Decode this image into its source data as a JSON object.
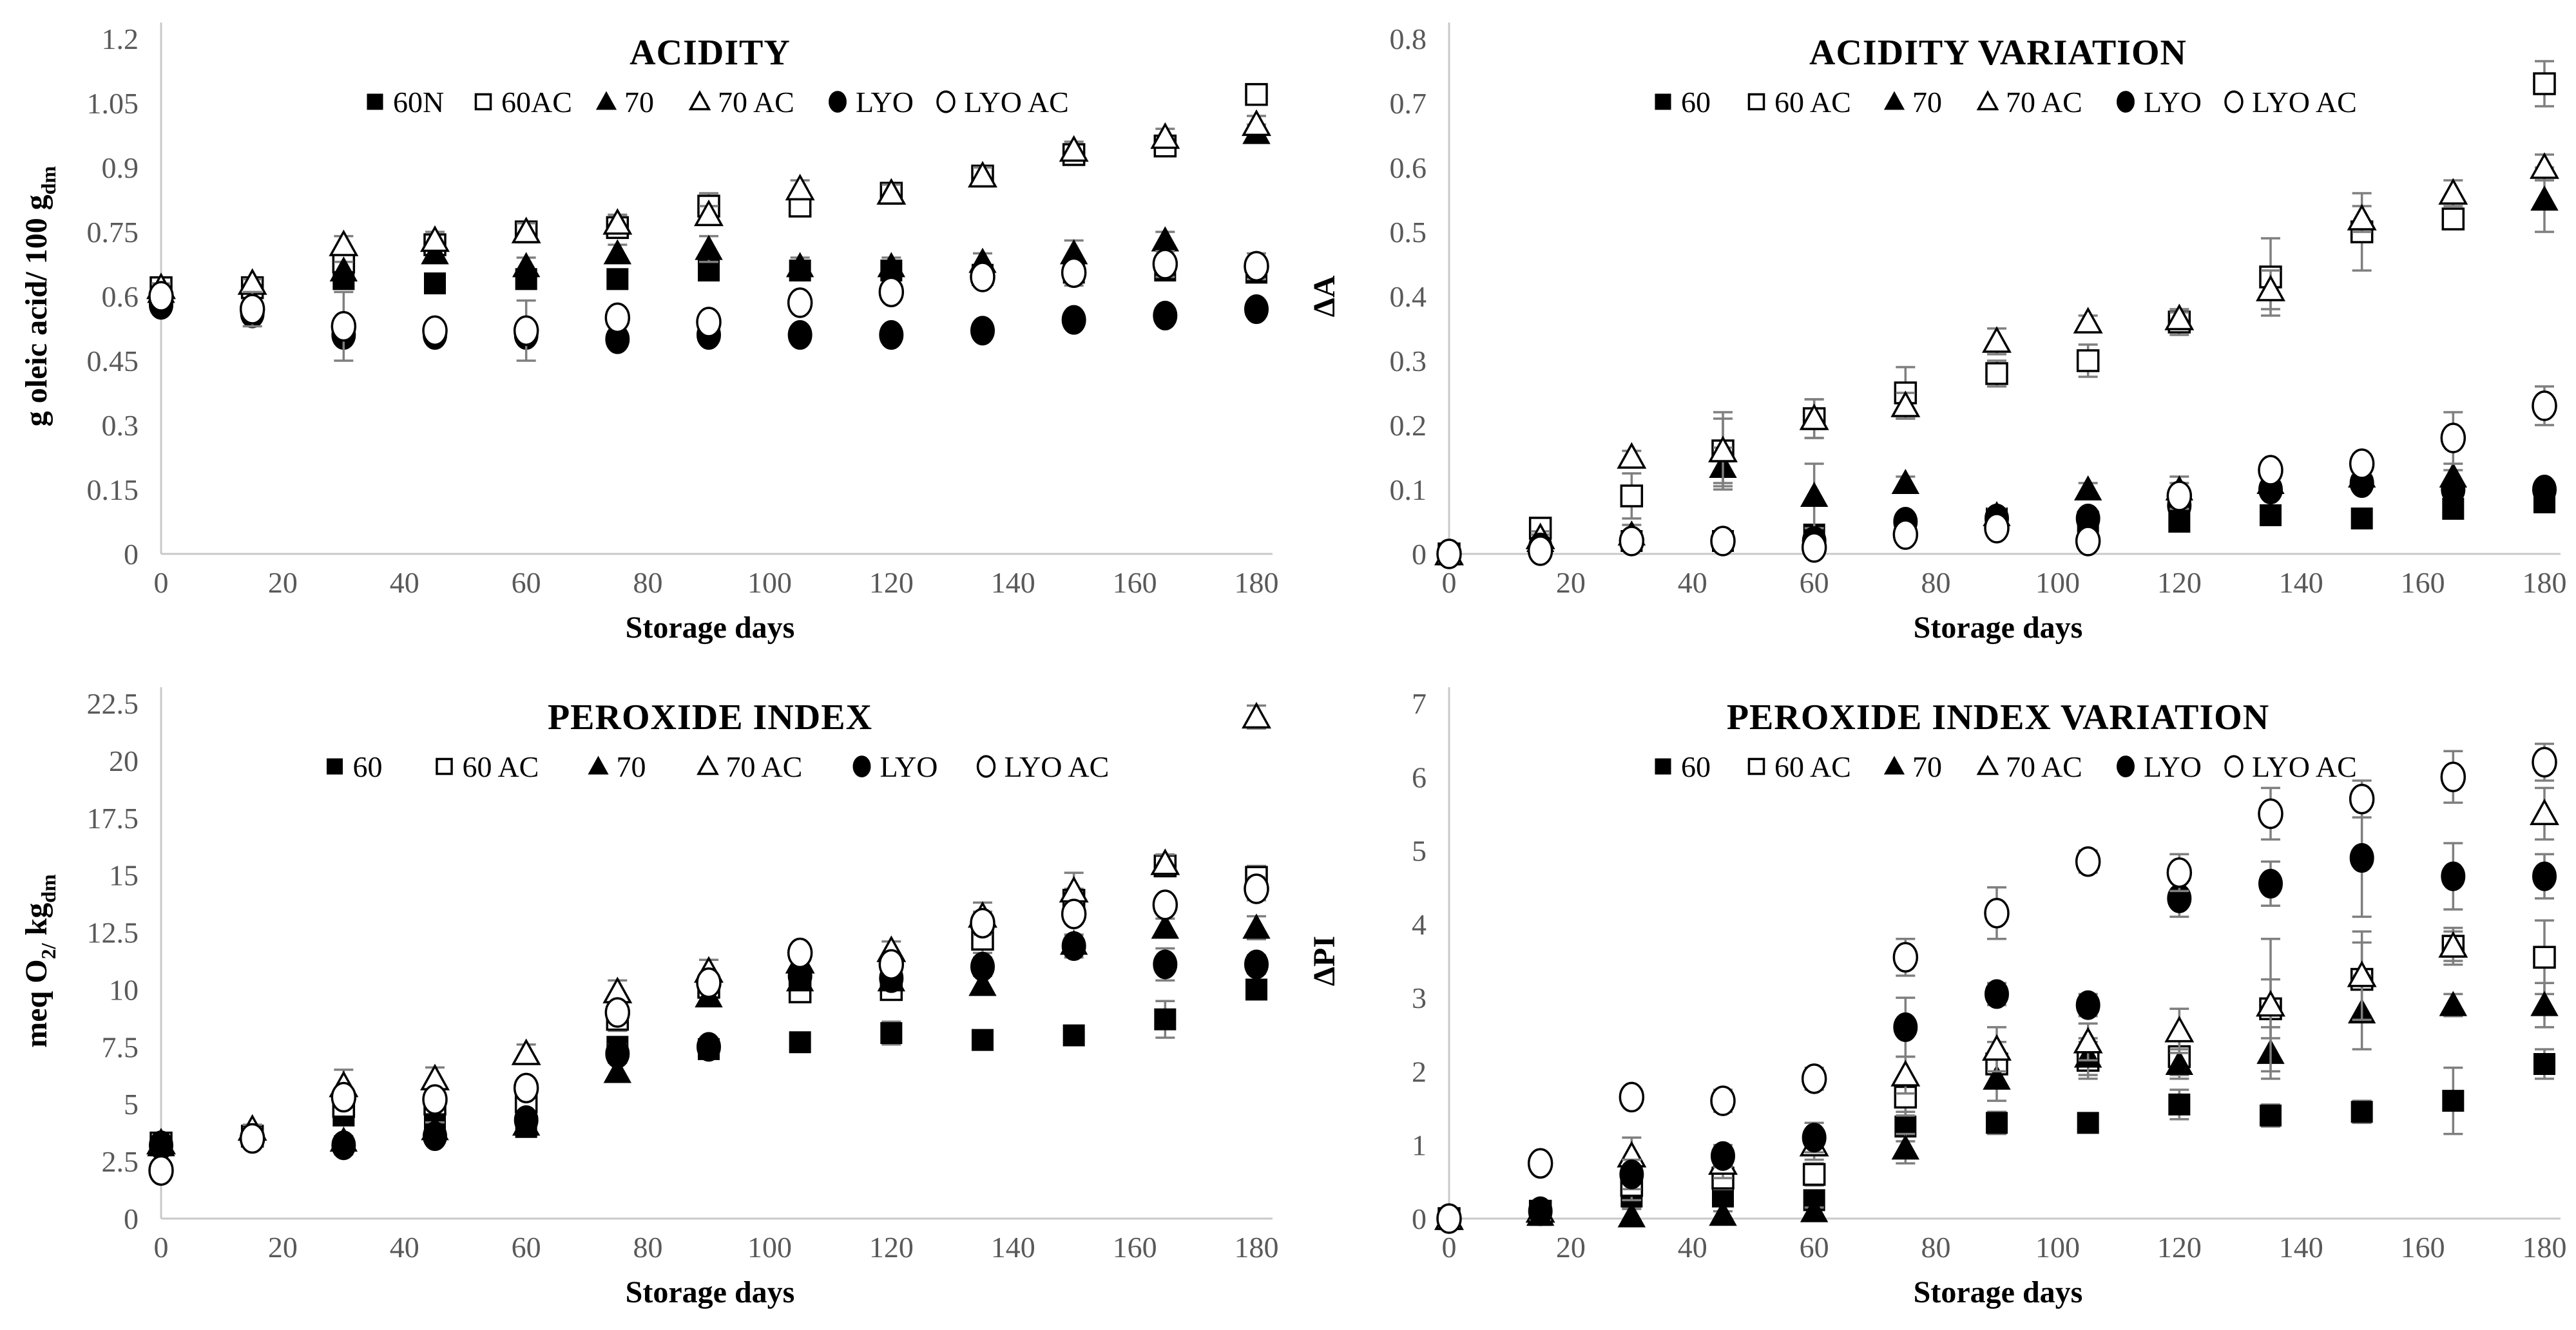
{
  "figure": {
    "x_axis_label": "Storage days",
    "panel_titles": [
      "ACIDITY",
      "ACIDITY VARIATION",
      "PEROXIDE INDEX",
      "PEROXIDE INDEX VARIATION"
    ]
  },
  "chart_data": [
    {
      "type": "scatter",
      "title": "ACIDITY",
      "xlabel": "Storage days",
      "ylabel_parts": [
        {
          "text": "g oleic acid/ 100 g",
          "sub": false
        },
        {
          "text": "dm",
          "sub": true
        }
      ],
      "xlim": [
        0,
        180
      ],
      "ylim": [
        0,
        1.2
      ],
      "xticks": [
        0,
        20,
        40,
        60,
        80,
        100,
        120,
        140,
        160,
        180
      ],
      "ytick_vals": [
        0,
        0.15,
        0.3,
        0.45,
        0.6,
        0.75,
        0.9,
        1.05,
        1.2
      ],
      "ytick_labels": [
        "0",
        "0.15",
        "0.3",
        "0.45",
        "0.6",
        "0.75",
        "0.9",
        "1.05",
        "1.2"
      ],
      "grid": false,
      "legend_position": "top",
      "legend_gap": 55,
      "x": [
        0,
        15,
        30,
        45,
        60,
        75,
        90,
        105,
        120,
        135,
        150,
        165,
        180
      ],
      "series": [
        {
          "name": "60N",
          "marker": "square-filled",
          "values": [
            0.61,
            0.62,
            0.64,
            0.63,
            0.64,
            0.64,
            0.66,
            0.66,
            0.66,
            0.65,
            0.655,
            0.66,
            0.655
          ],
          "errors": [
            0.01,
            0.01,
            0.02,
            0.01,
            0.01,
            0.02,
            0.01,
            0.02,
            0.02,
            0.01,
            0.03,
            0.02,
            0.02
          ]
        },
        {
          "name": "60AC",
          "marker": "square-open",
          "values": [
            0.62,
            0.62,
            0.68,
            0.72,
            0.75,
            0.76,
            0.81,
            0.81,
            0.84,
            0.88,
            0.93,
            0.95,
            1.07
          ],
          "errors": [
            0.01,
            0.01,
            0.02,
            0.02,
            0.02,
            0.02,
            0.03,
            0.02,
            0.02,
            0.02,
            0.02,
            0.02,
            0.02
          ]
        },
        {
          "name": "70",
          "marker": "triangle-filled",
          "values": [
            0.61,
            0.63,
            0.66,
            0.7,
            0.67,
            0.7,
            0.71,
            0.67,
            0.67,
            0.68,
            0.7,
            0.73,
            0.98
          ],
          "errors": [
            0.01,
            0.01,
            0.02,
            0.02,
            0.02,
            0.02,
            0.03,
            0.02,
            0.02,
            0.02,
            0.03,
            0.02,
            0.02
          ]
        },
        {
          "name": "70 AC",
          "marker": "triangle-open",
          "values": [
            0.62,
            0.63,
            0.72,
            0.73,
            0.75,
            0.77,
            0.79,
            0.85,
            0.84,
            0.88,
            0.94,
            0.97,
            1.0
          ],
          "errors": [
            0.01,
            0.01,
            0.02,
            0.02,
            0.02,
            0.02,
            0.02,
            0.02,
            0.02,
            0.02,
            0.02,
            0.02,
            0.02
          ]
        },
        {
          "name": "LYO",
          "marker": "circle-filled",
          "values": [
            0.58,
            0.56,
            0.51,
            0.51,
            0.51,
            0.5,
            0.51,
            0.51,
            0.51,
            0.52,
            0.545,
            0.555,
            0.57
          ],
          "errors": [
            0.01,
            0.02,
            0.02,
            0.01,
            0.01,
            0.01,
            0.01,
            0.01,
            0.01,
            0.01,
            0.01,
            0.01,
            0.01
          ]
        },
        {
          "name": "LYO AC",
          "marker": "circle-open",
          "values": [
            0.6,
            0.57,
            0.53,
            0.52,
            0.52,
            0.55,
            0.54,
            0.585,
            0.61,
            0.645,
            0.655,
            0.675,
            0.67
          ],
          "errors": [
            0.01,
            0.04,
            0.08,
            0.02,
            0.07,
            0.02,
            0.02,
            0.02,
            0.02,
            0.02,
            0.02,
            0.03,
            0.03
          ]
        }
      ]
    },
    {
      "type": "scatter",
      "title": "ACIDITY VARIATION",
      "xlabel": "Storage days",
      "ylabel_parts": [
        {
          "text": "ΔA",
          "sub": false
        }
      ],
      "xlim": [
        0,
        180
      ],
      "ylim": [
        0,
        0.8
      ],
      "xticks": [
        0,
        20,
        40,
        60,
        80,
        100,
        120,
        140,
        160,
        180
      ],
      "ytick_vals": [
        0,
        0.1,
        0.2,
        0.3,
        0.4,
        0.5,
        0.6,
        0.7,
        0.8
      ],
      "ytick_labels": [
        "0",
        "0.1",
        "0.2",
        "0.3",
        "0.4",
        "0.5",
        "0.6",
        "0.7",
        "0.8"
      ],
      "grid": false,
      "legend_position": "top",
      "legend_gap": 55,
      "x": [
        0,
        15,
        30,
        45,
        60,
        75,
        90,
        105,
        120,
        135,
        150,
        165,
        180
      ],
      "series": [
        {
          "name": "60",
          "marker": "square-filled",
          "values": [
            0,
            0.01,
            0.02,
            0.02,
            0.03,
            0.04,
            0.055,
            0.05,
            0.05,
            0.06,
            0.055,
            0.07,
            0.08
          ],
          "errors": [
            0.005,
            0.01,
            0.01,
            0.01,
            0.01,
            0.01,
            0.01,
            0.015,
            0.01,
            0.015,
            0.01,
            0.01,
            0.01
          ]
        },
        {
          "name": "60 AC",
          "marker": "square-open",
          "values": [
            0,
            0.04,
            0.09,
            0.16,
            0.21,
            0.25,
            0.28,
            0.3,
            0.36,
            0.43,
            0.5,
            0.52,
            0.73
          ],
          "errors": [
            0.005,
            0.01,
            0.035,
            0.05,
            0.03,
            0.04,
            0.02,
            0.025,
            0.02,
            0.06,
            0.06,
            0.015,
            0.035
          ]
        },
        {
          "name": "70",
          "marker": "triangle-filled",
          "values": [
            0,
            0.02,
            0.03,
            0.135,
            0.09,
            0.11,
            0.06,
            0.1,
            0.1,
            0.11,
            0.12,
            0.12,
            0.55
          ],
          "errors": [
            0.005,
            0.01,
            0.015,
            0.03,
            0.05,
            0.01,
            0.01,
            0.01,
            0.02,
            0.01,
            0.02,
            0.01,
            0.05
          ]
        },
        {
          "name": "70 AC",
          "marker": "triangle-open",
          "values": [
            0,
            0.025,
            0.15,
            0.16,
            0.21,
            0.23,
            0.33,
            0.36,
            0.365,
            0.41,
            0.52,
            0.56,
            0.6
          ],
          "errors": [
            0.005,
            0.01,
            0.01,
            0.06,
            0.03,
            0.02,
            0.02,
            0.01,
            0.01,
            0.03,
            0.02,
            0.02,
            0.02
          ]
        },
        {
          "name": "LYO",
          "marker": "circle-filled",
          "values": [
            0,
            0.01,
            0.02,
            0.02,
            0.02,
            0.05,
            0.055,
            0.055,
            0.075,
            0.1,
            0.11,
            0.1,
            0.1
          ],
          "errors": [
            0.005,
            0.005,
            0.01,
            0.01,
            0.01,
            0.01,
            0.01,
            0.01,
            0.01,
            0.01,
            0.01,
            0.01,
            0.01
          ]
        },
        {
          "name": "LYO AC",
          "marker": "circle-open",
          "values": [
            0,
            0.005,
            0.02,
            0.02,
            0.01,
            0.03,
            0.04,
            0.02,
            0.09,
            0.13,
            0.14,
            0.18,
            0.23
          ],
          "errors": [
            0.005,
            0.005,
            0.01,
            0.01,
            0.01,
            0.01,
            0.01,
            0.01,
            0.02,
            0.01,
            0.015,
            0.04,
            0.03
          ]
        }
      ]
    },
    {
      "type": "scatter",
      "title": "PEROXIDE INDEX",
      "xlabel": "Storage days",
      "ylabel_parts": [
        {
          "text": "meq O",
          "sub": false
        },
        {
          "text": "2/",
          "sub": true
        },
        {
          "text": " kg",
          "sub": false
        },
        {
          "text": "dm",
          "sub": true
        }
      ],
      "xlim": [
        0,
        180
      ],
      "ylim": [
        0,
        22.5
      ],
      "xticks": [
        0,
        20,
        40,
        60,
        80,
        100,
        120,
        140,
        160,
        180
      ],
      "ytick_vals": [
        0,
        2.5,
        5,
        7.5,
        10,
        12.5,
        15,
        17.5,
        20,
        22.5
      ],
      "ytick_labels": [
        "0",
        "2.5",
        "5",
        "7.5",
        "10",
        "12.5",
        "15",
        "17.5",
        "20",
        "22.5"
      ],
      "grid": false,
      "legend_position": "top",
      "legend_gap": 80,
      "x": [
        0,
        15,
        30,
        45,
        60,
        75,
        90,
        105,
        120,
        135,
        150,
        165,
        180
      ],
      "series": [
        {
          "name": "60",
          "marker": "square-filled",
          "values": [
            3.2,
            3.6,
            4.5,
            4.1,
            4.0,
            7.5,
            7.4,
            7.7,
            8.1,
            7.8,
            8.0,
            8.7,
            10.0
          ],
          "errors": [
            0.2,
            0.2,
            0.3,
            0.5,
            0.3,
            0.4,
            0.3,
            0.2,
            0.5,
            0.3,
            0.4,
            0.8,
            0.4
          ]
        },
        {
          "name": "60 AC",
          "marker": "square-open",
          "values": [
            3.3,
            3.6,
            4.9,
            5.0,
            5.1,
            8.7,
            10.1,
            9.9,
            10.0,
            12.2,
            13.9,
            15.4,
            14.9
          ],
          "errors": [
            0.2,
            0.2,
            0.3,
            0.3,
            0.3,
            0.5,
            0.4,
            0.3,
            0.3,
            0.6,
            0.5,
            0.4,
            0.5
          ]
        },
        {
          "name": "70",
          "marker": "triangle-filled",
          "values": [
            3.2,
            3.9,
            3.4,
            3.9,
            4.1,
            6.4,
            9.7,
            10.4,
            10.4,
            10.2,
            12.0,
            12.7,
            12.7
          ],
          "errors": [
            0.2,
            0.2,
            0.2,
            0.3,
            0.3,
            0.4,
            0.4,
            0.3,
            0.3,
            0.4,
            0.4,
            0.4,
            0.5
          ]
        },
        {
          "name": "70 AC",
          "marker": "triangle-open",
          "values": [
            3.3,
            3.9,
            5.8,
            6.1,
            7.2,
            9.9,
            10.8,
            11.2,
            11.7,
            13.2,
            14.3,
            15.5,
            21.9
          ],
          "errors": [
            0.2,
            0.2,
            0.7,
            0.5,
            0.4,
            0.5,
            0.5,
            0.4,
            0.4,
            0.6,
            0.8,
            0.4,
            0.5
          ]
        },
        {
          "name": "LYO",
          "marker": "circle-filled",
          "values": [
            3.2,
            3.5,
            3.2,
            3.6,
            4.3,
            7.2,
            7.5,
            10.6,
            10.5,
            11.0,
            11.9,
            11.1,
            11.1
          ],
          "errors": [
            0.2,
            0.2,
            0.4,
            0.3,
            0.3,
            0.4,
            0.3,
            0.3,
            0.3,
            0.4,
            0.5,
            0.7,
            0.4
          ]
        },
        {
          "name": "LYO AC",
          "marker": "circle-open",
          "values": [
            2.1,
            3.5,
            5.3,
            5.2,
            5.7,
            9.0,
            10.3,
            11.6,
            11.1,
            12.9,
            13.3,
            13.7,
            14.4
          ],
          "errors": [
            0.2,
            0.2,
            0.4,
            0.3,
            0.4,
            0.4,
            0.4,
            0.4,
            0.4,
            0.5,
            0.4,
            0.4,
            0.5
          ]
        }
      ]
    },
    {
      "type": "scatter",
      "title": "PEROXIDE INDEX VARIATION",
      "xlabel": "Storage days",
      "ylabel_parts": [
        {
          "text": "ΔPI",
          "sub": false
        }
      ],
      "xlim": [
        0,
        180
      ],
      "ylim": [
        0,
        7
      ],
      "xticks": [
        0,
        20,
        40,
        60,
        80,
        100,
        120,
        140,
        160,
        180
      ],
      "ytick_vals": [
        0,
        1,
        2,
        3,
        4,
        5,
        6,
        7
      ],
      "ytick_labels": [
        "0",
        "1",
        "2",
        "3",
        "4",
        "5",
        "6",
        "7"
      ],
      "grid": false,
      "legend_position": "top",
      "legend_gap": 55,
      "x": [
        0,
        15,
        30,
        45,
        60,
        75,
        90,
        105,
        120,
        135,
        150,
        165,
        180
      ],
      "series": [
        {
          "name": "60",
          "marker": "square-filled",
          "values": [
            0,
            0.05,
            0.3,
            0.3,
            0.25,
            1.25,
            1.3,
            1.3,
            1.55,
            1.4,
            1.45,
            1.6,
            2.1
          ],
          "errors": [
            0.02,
            0.05,
            0.15,
            0.1,
            0.1,
            0.2,
            0.15,
            0.1,
            0.2,
            0.15,
            0.15,
            0.45,
            0.2
          ]
        },
        {
          "name": "60 AC",
          "marker": "square-open",
          "values": [
            0,
            0.1,
            0.45,
            0.55,
            0.6,
            1.65,
            2.1,
            2.15,
            2.2,
            2.85,
            3.25,
            3.7,
            3.55
          ],
          "errors": [
            0.02,
            0.05,
            0.2,
            0.15,
            0.15,
            0.25,
            0.3,
            0.25,
            0.25,
            0.4,
            0.5,
            0.2,
            0.5
          ]
        },
        {
          "name": "70",
          "marker": "triangle-filled",
          "values": [
            0,
            0.05,
            0.03,
            0.05,
            0.1,
            0.95,
            1.9,
            2.2,
            2.1,
            2.25,
            2.8,
            2.9,
            2.9
          ],
          "errors": [
            0.02,
            0.05,
            0.1,
            0.05,
            0.05,
            0.2,
            0.3,
            0.25,
            0.2,
            0.35,
            0.5,
            0.15,
            0.3
          ]
        },
        {
          "name": "70 AC",
          "marker": "triangle-open",
          "values": [
            0,
            0.1,
            0.85,
            0.75,
            1.0,
            1.95,
            2.3,
            2.4,
            2.55,
            2.9,
            3.3,
            3.7,
            5.5
          ],
          "errors": [
            0.02,
            0.05,
            0.25,
            0.2,
            0.2,
            0.25,
            0.3,
            0.25,
            0.3,
            0.9,
            0.6,
            0.25,
            0.35
          ]
        },
        {
          "name": "LYO",
          "marker": "circle-filled",
          "values": [
            0,
            0.1,
            0.6,
            0.85,
            1.1,
            2.6,
            3.05,
            2.9,
            4.35,
            4.55,
            4.9,
            4.65,
            4.65
          ],
          "errors": [
            0.02,
            0.05,
            0.2,
            0.15,
            0.2,
            0.4,
            0.15,
            0.15,
            0.25,
            0.3,
            0.8,
            0.45,
            0.3
          ]
        },
        {
          "name": "LYO AC",
          "marker": "circle-open",
          "values": [
            0,
            0.75,
            1.65,
            1.6,
            1.9,
            3.55,
            4.15,
            4.85,
            4.7,
            5.5,
            5.7,
            6.0,
            6.2
          ],
          "errors": [
            0.02,
            0.05,
            0.1,
            0.15,
            0.15,
            0.25,
            0.35,
            0.15,
            0.25,
            0.35,
            0.25,
            0.35,
            0.25
          ]
        }
      ]
    }
  ]
}
